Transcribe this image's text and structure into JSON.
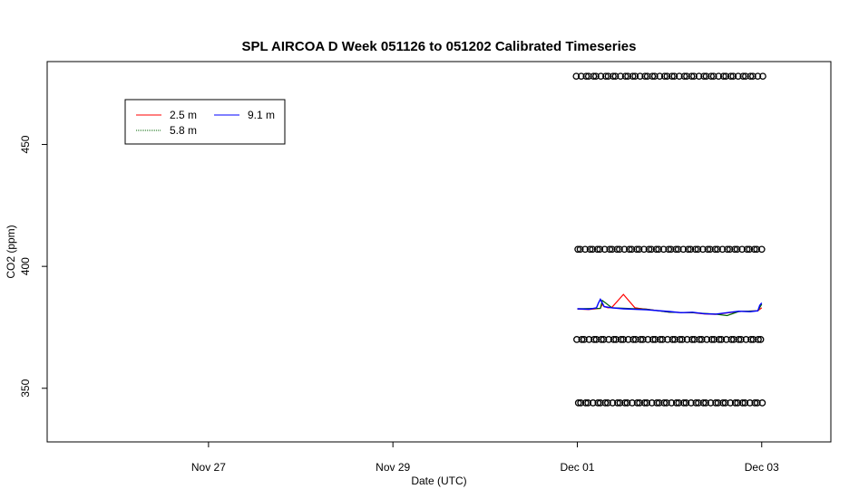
{
  "chart_data": {
    "type": "line",
    "title": "SPL AIRCOA D  Week 051126 to 051202  Calibrated Timeseries",
    "xlabel": "Date (UTC)",
    "ylabel": "CO2 (ppm)",
    "x_ticks": [
      {
        "date": "2005-11-27",
        "label": "Nov 27"
      },
      {
        "date": "2005-11-29",
        "label": "Nov 29"
      },
      {
        "date": "2005-12-01",
        "label": "Dec 01"
      },
      {
        "date": "2005-12-03",
        "label": "Dec 03"
      }
    ],
    "xlim": [
      "2005-11-25T06:00",
      "2005-12-03T18:00"
    ],
    "y_ticks": [
      350,
      400,
      450
    ],
    "ylim": [
      328,
      484
    ],
    "grid": false,
    "legend_position": "top-left",
    "series": [
      {
        "name": "2.5 m",
        "color": "#ff0000",
        "x": [
          "2005-12-01T00:00",
          "2005-12-01T03:00",
          "2005-12-01T06:00",
          "2005-12-01T06:30",
          "2005-12-01T07:00",
          "2005-12-01T08:00",
          "2005-12-01T09:00",
          "2005-12-01T12:00",
          "2005-12-01T15:00",
          "2005-12-01T16:00",
          "2005-12-01T17:00",
          "2005-12-01T18:00",
          "2005-12-02T00:00",
          "2005-12-02T06:00",
          "2005-12-02T09:00",
          "2005-12-02T12:00",
          "2005-12-02T18:00",
          "2005-12-02T23:00",
          "2005-12-03T00:00"
        ],
        "values": [
          382.5,
          382.3,
          382.8,
          384.5,
          383.5,
          383.0,
          383.2,
          388.5,
          383.0,
          382.8,
          382.6,
          382.5,
          381.2,
          381.0,
          380.5,
          380.3,
          381.5,
          381.8,
          383.0
        ]
      },
      {
        "name": "5.8 m",
        "color": "#006400",
        "x": [
          "2005-12-01T00:00",
          "2005-12-01T06:00",
          "2005-12-01T06:30",
          "2005-12-01T09:00",
          "2005-12-01T18:00",
          "2005-12-02T00:00",
          "2005-12-02T06:00",
          "2005-12-02T12:00",
          "2005-12-02T15:00",
          "2005-12-02T18:00",
          "2005-12-02T23:00",
          "2005-12-03T00:00"
        ],
        "values": [
          382.6,
          382.8,
          386.0,
          383.0,
          382.4,
          381.2,
          381.0,
          380.4,
          379.8,
          381.5,
          381.8,
          384.5
        ]
      },
      {
        "name": "9.1 m",
        "color": "#0000ff",
        "x": [
          "2005-12-01T00:00",
          "2005-12-01T03:00",
          "2005-12-01T05:00",
          "2005-12-01T05:30",
          "2005-12-01T06:00",
          "2005-12-01T07:00",
          "2005-12-01T09:00",
          "2005-12-01T12:00",
          "2005-12-01T18:00",
          "2005-12-02T00:00",
          "2005-12-02T03:00",
          "2005-12-02T06:00",
          "2005-12-02T09:00",
          "2005-12-02T12:00",
          "2005-12-02T15:00",
          "2005-12-02T18:00",
          "2005-12-02T21:00",
          "2005-12-02T23:00",
          "2005-12-02T23:30",
          "2005-12-03T00:00"
        ],
        "values": [
          382.6,
          382.4,
          383.0,
          385.0,
          386.5,
          383.5,
          383.0,
          382.6,
          382.2,
          381.5,
          381.0,
          381.2,
          380.6,
          380.4,
          381.0,
          381.6,
          381.4,
          381.8,
          384.0,
          385.0
        ]
      }
    ],
    "reference_points": {
      "marker": "open-circle",
      "color": "#000000",
      "levels": [
        478,
        407,
        370,
        344
      ],
      "start": "2005-12-01T00:00",
      "end": "2005-12-03T00:00",
      "count_per_level": 48
    }
  }
}
